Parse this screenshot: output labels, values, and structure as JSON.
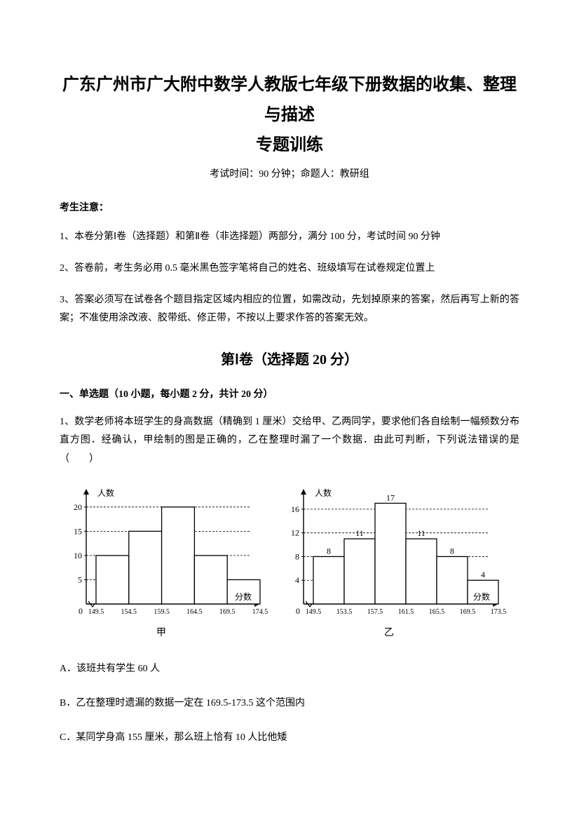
{
  "title_line1": "广东广州市广大附中数学人教版七年级下册数据的收集、整理与描述",
  "title_line2": "专题训练",
  "exam_info": "考试时间：90 分钟；命题人：教研组",
  "notice_heading": "考生注意：",
  "notice_1": "1、本卷分第Ⅰ卷（选择题）和第Ⅱ卷（非选择题）两部分，满分 100 分，考试时间 90 分钟",
  "notice_2": "2、答卷前，考生务必用 0.5 毫米黑色签字笔将自己的姓名、班级填写在试卷规定位置上",
  "notice_3": "3、答案必须写在试卷各个题目指定区域内相应的位置，如需改动，先划掉原来的答案，然后再写上新的答案；不准使用涂改液、胶带纸、修正带，不按以上要求作答的答案无效。",
  "section1_heading": "第Ⅰ卷（选择题  20 分）",
  "subsection_1": "一、单选题（10 小题，每小题 2 分，共计 20 分）",
  "q1_text": "1、数学老师将本班学生的身高数据（精确到 1 厘米）交给甲、乙两同学，要求他们各自绘制一幅频数分布直方图．经确认，甲绘制的图是正确的，乙在整理时漏了一个数据．由此可判断，下列说法错误的是（　　）",
  "chart_jia": {
    "type": "histogram",
    "label": "甲",
    "y_axis_label": "人数",
    "x_axis_label": "分数",
    "x_ticks": [
      "149.5",
      "154.5",
      "159.5",
      "164.5",
      "169.5",
      "174.5"
    ],
    "y_ticks": [
      5,
      10,
      15,
      20
    ],
    "values": [
      10,
      15,
      20,
      10,
      5
    ],
    "bar_color": "#ffffff",
    "bar_border": "#000000",
    "axis_color": "#000000",
    "grid_dash": "3,2",
    "ylim": [
      0,
      22
    ]
  },
  "chart_yi": {
    "type": "histogram",
    "label": "乙",
    "y_axis_label": "人数",
    "x_axis_label": "分数",
    "x_ticks": [
      "149.5",
      "153.5",
      "157.5",
      "161.5",
      "165.5",
      "169.5",
      "173.5"
    ],
    "y_ticks": [
      4,
      8,
      12,
      16
    ],
    "values": [
      8,
      11,
      17,
      11,
      8,
      4
    ],
    "value_labels": [
      "8",
      "11",
      "17",
      "11",
      "8",
      "4"
    ],
    "bar_color": "#ffffff",
    "bar_border": "#000000",
    "axis_color": "#000000",
    "grid_dash": "3,2",
    "ylim": [
      0,
      18
    ]
  },
  "opt_a": "A．该班共有学生 60 人",
  "opt_b": "B．乙在整理时遗漏的数据一定在 169.5-173.5 这个范围内",
  "opt_c": "C．某同学身高 155 厘米，那么班上恰有 10 人比他矮"
}
